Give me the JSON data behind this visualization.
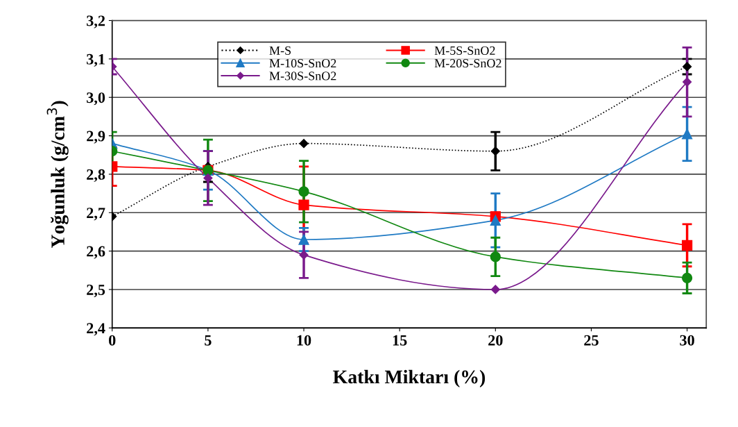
{
  "chart_data": {
    "type": "line",
    "xlabel": "Katkı Miktarı (%)",
    "ylabel": "Yoğunluk (g/cm$^{3}$)",
    "x": [
      0,
      5,
      10,
      20,
      30
    ],
    "xlim": [
      0,
      31
    ],
    "xticks": [
      0,
      5,
      10,
      15,
      20,
      25,
      30
    ],
    "ylim": [
      2.4,
      3.2
    ],
    "yticks": [
      {
        "value": 2.4,
        "label": "2,4"
      },
      {
        "value": 2.5,
        "label": "2,5"
      },
      {
        "value": 2.6,
        "label": "2,6"
      },
      {
        "value": 2.7,
        "label": "2,7"
      },
      {
        "value": 2.8,
        "label": "2,8"
      },
      {
        "value": 2.9,
        "label": "2,9"
      },
      {
        "value": 3.0,
        "label": "3,0"
      },
      {
        "value": 3.1,
        "label": "3,1"
      },
      {
        "value": 3.2,
        "label": "3,2"
      }
    ],
    "grid": "y",
    "legend": "top",
    "series": [
      {
        "name": "M-S",
        "color": "#000000",
        "marker": "diamond",
        "line_style": "dotted",
        "values": [
          2.69,
          2.82,
          2.88,
          2.86,
          3.08
        ],
        "errors": [
          null,
          0.04,
          null,
          0.05,
          0.02
        ]
      },
      {
        "name": "M-5S-SnO2",
        "color": "#ff0000",
        "marker": "square",
        "line_style": "solid",
        "values": [
          2.82,
          2.81,
          2.72,
          2.69,
          2.615
        ],
        "errors": [
          0.05,
          null,
          0.1,
          null,
          0.055
        ]
      },
      {
        "name": "M-10S-SnO2",
        "color": "#1f7ac4",
        "marker": "triangle",
        "line_style": "solid",
        "values": [
          2.88,
          2.81,
          2.63,
          2.68,
          2.905
        ],
        "errors": [
          null,
          0.05,
          0.03,
          0.07,
          0.07
        ]
      },
      {
        "name": "M-20S-SnO2",
        "color": "#118811",
        "marker": "circle",
        "line_style": "solid",
        "values": [
          2.86,
          2.81,
          2.755,
          2.585,
          2.53
        ],
        "errors": [
          0.05,
          0.08,
          0.08,
          0.05,
          0.04
        ]
      },
      {
        "name": "M-30S-SnO2",
        "color": "#7a1a8c",
        "marker": "diamond",
        "line_style": "solid",
        "values": [
          3.08,
          2.79,
          2.59,
          2.5,
          3.04
        ],
        "errors": [
          0.02,
          0.07,
          0.06,
          null,
          0.09
        ]
      }
    ]
  }
}
